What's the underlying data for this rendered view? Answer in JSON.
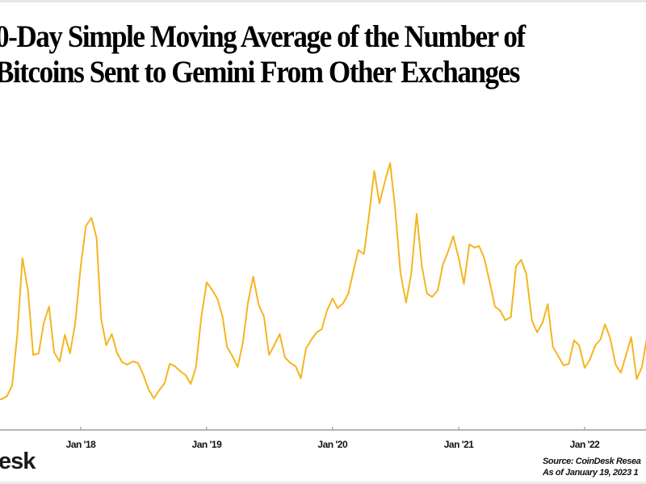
{
  "chart_data": {
    "type": "line",
    "title_lines": [
      "0-Day Simple Moving Average of the Number of",
      "Bitcoins  Sent to Gemini From Other Exchanges"
    ],
    "xlabel": "",
    "ylabel": "",
    "x_tick_labels": [
      "Jan '18",
      "Jan '19",
      "Jan '20",
      "Jan '21",
      "Jan '22"
    ],
    "x_tick_dates": [
      "2018-01-01",
      "2019-01-01",
      "2020-01-01",
      "2021-01-01",
      "2022-01-01"
    ],
    "xlim": [
      "2017-05-08",
      "2022-07-01"
    ],
    "ylim": [
      0,
      380
    ],
    "grid": false,
    "line_color": "#F5B51F",
    "series": [
      {
        "x": [
          "2017-05-01",
          "2017-05-16",
          "2017-06-01",
          "2017-06-16",
          "2017-07-01",
          "2017-07-16",
          "2017-08-01",
          "2017-08-16",
          "2017-09-01",
          "2017-09-16",
          "2017-10-01",
          "2017-10-16",
          "2017-11-01",
          "2017-11-16",
          "2017-12-01",
          "2017-12-16",
          "2018-01-01",
          "2018-01-16",
          "2018-02-01",
          "2018-02-16",
          "2018-03-01",
          "2018-03-16",
          "2018-04-01",
          "2018-04-16",
          "2018-05-01",
          "2018-05-16",
          "2018-06-01",
          "2018-06-16",
          "2018-07-01",
          "2018-07-16",
          "2018-08-01",
          "2018-08-16",
          "2018-09-01",
          "2018-09-16",
          "2018-10-01",
          "2018-10-16",
          "2018-11-01",
          "2018-11-16",
          "2018-12-01",
          "2018-12-16",
          "2019-01-01",
          "2019-01-16",
          "2019-02-01",
          "2019-02-16",
          "2019-03-01",
          "2019-03-16",
          "2019-04-01",
          "2019-04-16",
          "2019-05-01",
          "2019-05-16",
          "2019-06-01",
          "2019-06-16",
          "2019-07-01",
          "2019-07-16",
          "2019-08-01",
          "2019-08-16",
          "2019-09-01",
          "2019-09-16",
          "2019-10-01",
          "2019-10-16",
          "2019-11-01",
          "2019-11-16",
          "2019-12-01",
          "2019-12-16",
          "2020-01-01",
          "2020-01-16",
          "2020-02-01",
          "2020-02-16",
          "2020-03-01",
          "2020-03-16",
          "2020-04-01",
          "2020-04-16",
          "2020-05-01",
          "2020-05-16",
          "2020-06-01",
          "2020-06-16",
          "2020-07-01",
          "2020-07-16",
          "2020-08-01",
          "2020-08-16",
          "2020-09-01",
          "2020-09-16",
          "2020-10-01",
          "2020-10-16",
          "2020-11-01",
          "2020-11-16",
          "2020-12-01",
          "2020-12-16",
          "2021-01-01",
          "2021-01-16",
          "2021-02-01",
          "2021-02-16",
          "2021-03-01",
          "2021-03-16",
          "2021-04-01",
          "2021-04-16",
          "2021-05-01",
          "2021-05-16",
          "2021-06-01",
          "2021-06-16",
          "2021-07-01",
          "2021-07-16",
          "2021-08-01",
          "2021-08-16",
          "2021-09-01",
          "2021-09-16",
          "2021-10-01",
          "2021-10-16",
          "2021-11-01",
          "2021-11-16",
          "2021-12-01",
          "2021-12-16",
          "2022-01-01",
          "2022-01-16",
          "2022-02-01",
          "2022-02-16",
          "2022-03-01",
          "2022-03-16",
          "2022-04-01",
          "2022-04-16",
          "2022-05-01",
          "2022-05-16",
          "2022-06-01",
          "2022-06-16",
          "2022-07-01"
        ],
        "y": [
          38,
          38,
          42,
          55,
          118,
          213,
          173,
          93,
          95,
          133,
          153,
          96,
          85,
          118,
          95,
          133,
          203,
          253,
          263,
          238,
          138,
          105,
          119,
          96,
          84,
          81,
          85,
          83,
          69,
          51,
          39,
          49,
          58,
          82,
          79,
          73,
          68,
          57,
          78,
          138,
          183,
          174,
          163,
          141,
          103,
          92,
          78,
          108,
          158,
          190,
          155,
          141,
          93,
          105,
          119,
          90,
          83,
          79,
          64,
          101,
          112,
          121,
          125,
          148,
          163,
          151,
          157,
          169,
          196,
          223,
          218,
          267,
          321,
          281,
          308,
          331,
          273,
          195,
          158,
          193,
          268,
          203,
          169,
          165,
          173,
          205,
          221,
          240,
          213,
          181,
          230,
          226,
          228,
          213,
          183,
          153,
          148,
          136,
          140,
          203,
          211,
          193,
          136,
          121,
          133,
          156,
          103,
          92,
          80,
          82,
          111,
          105,
          77,
          87,
          105,
          112,
          131,
          114,
          81,
          71,
          93,
          115,
          63,
          78,
          115
        ]
      }
    ]
  },
  "footer": {
    "logo_text": "esk",
    "source": "Source: CoinDesk Resea",
    "as_of": "As of January 19, 2023 1"
  }
}
